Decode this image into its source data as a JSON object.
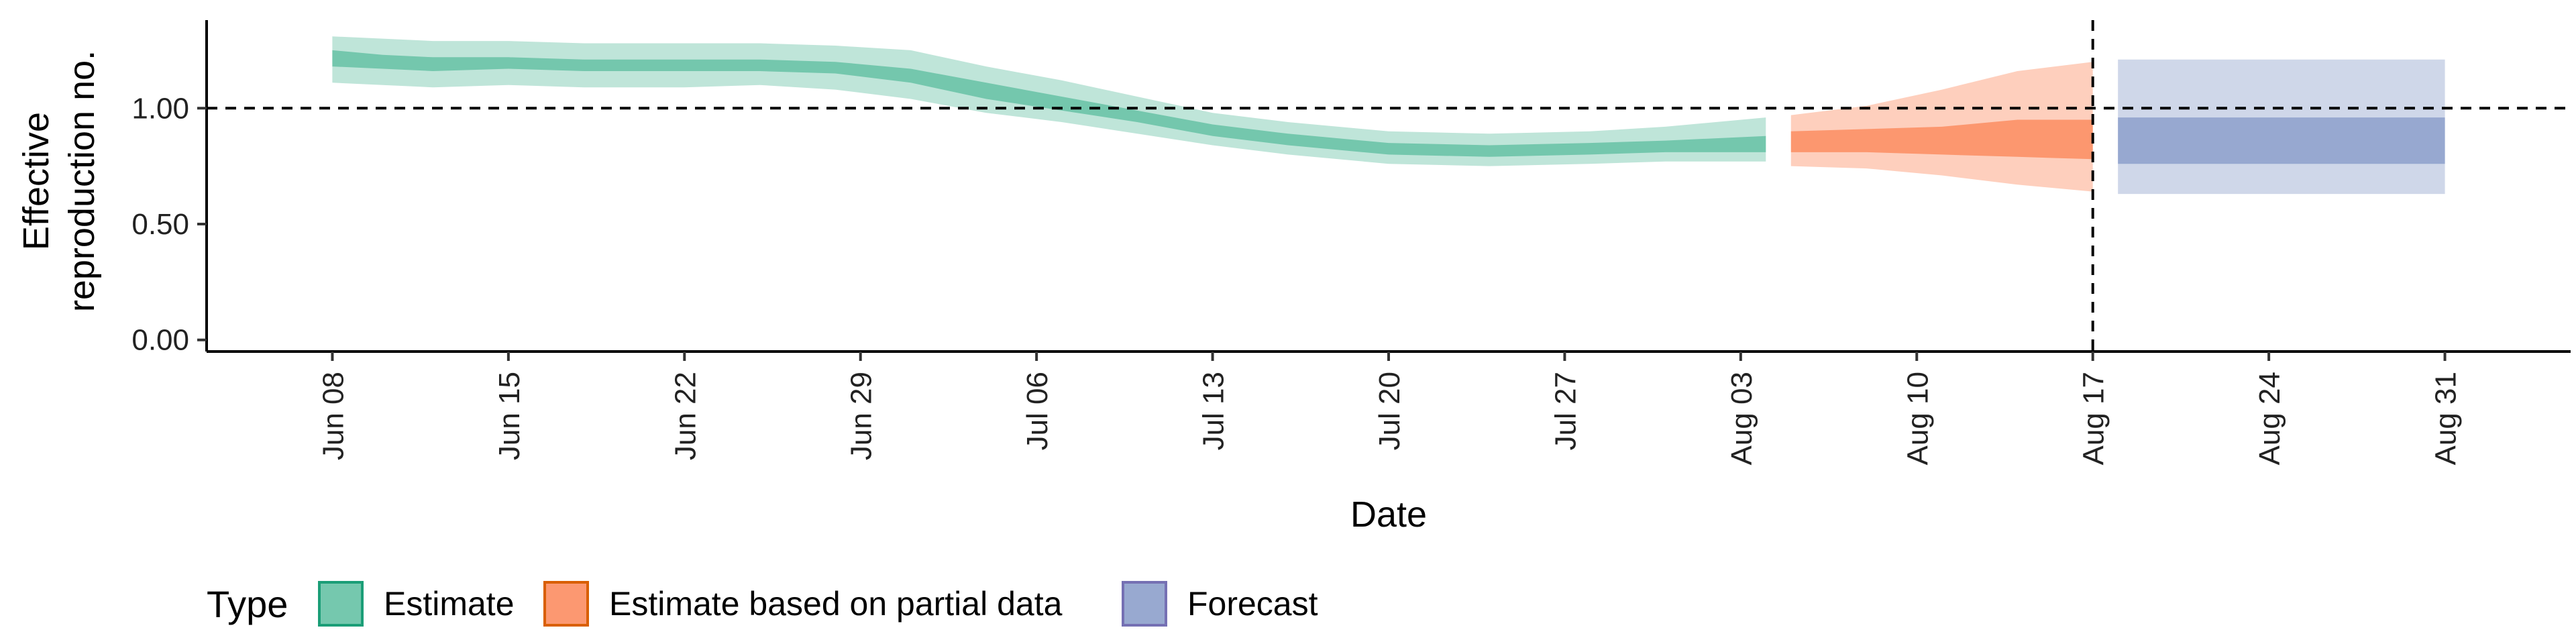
{
  "chart_data": {
    "type": "area",
    "xlabel": "Date",
    "ylabel_lines": [
      "Effective",
      "reproduction no."
    ],
    "x_range": [
      "2020-06-03",
      "2020-09-05"
    ],
    "ylim": [
      -0.05,
      1.38
    ],
    "y_ticks": [
      0.0,
      0.5,
      1.0
    ],
    "y_tick_labels": [
      "0.00",
      "0.50",
      "1.00"
    ],
    "x_ticks": [
      "2020-06-08",
      "2020-06-15",
      "2020-06-22",
      "2020-06-29",
      "2020-07-06",
      "2020-07-13",
      "2020-07-20",
      "2020-07-27",
      "2020-08-03",
      "2020-08-10",
      "2020-08-17",
      "2020-08-24",
      "2020-08-31"
    ],
    "x_tick_labels": [
      "Jun 08",
      "Jun 15",
      "Jun 22",
      "Jun 29",
      "Jul 06",
      "Jul 13",
      "Jul 20",
      "Jul 27",
      "Aug 03",
      "Aug 10",
      "Aug 17",
      "Aug 24",
      "Aug 31"
    ],
    "reference_line_y": 1.0,
    "vertical_line_date": "2020-08-17",
    "grid": false,
    "legend_position": "bottom",
    "legend_title": "Type",
    "series": [
      {
        "name": "Estimate",
        "color": "#66c2a5",
        "points": [
          {
            "date": "2020-06-08",
            "lo90": 1.11,
            "lo50": 1.18,
            "hi50": 1.25,
            "hi90": 1.31
          },
          {
            "date": "2020-06-10",
            "lo90": 1.1,
            "lo50": 1.17,
            "hi50": 1.23,
            "hi90": 1.3
          },
          {
            "date": "2020-06-12",
            "lo90": 1.09,
            "lo50": 1.16,
            "hi50": 1.22,
            "hi90": 1.29
          },
          {
            "date": "2020-06-15",
            "lo90": 1.1,
            "lo50": 1.17,
            "hi50": 1.22,
            "hi90": 1.29
          },
          {
            "date": "2020-06-18",
            "lo90": 1.09,
            "lo50": 1.16,
            "hi50": 1.21,
            "hi90": 1.28
          },
          {
            "date": "2020-06-22",
            "lo90": 1.09,
            "lo50": 1.16,
            "hi50": 1.21,
            "hi90": 1.28
          },
          {
            "date": "2020-06-25",
            "lo90": 1.1,
            "lo50": 1.16,
            "hi50": 1.21,
            "hi90": 1.28
          },
          {
            "date": "2020-06-28",
            "lo90": 1.08,
            "lo50": 1.15,
            "hi50": 1.2,
            "hi90": 1.27
          },
          {
            "date": "2020-07-01",
            "lo90": 1.04,
            "lo50": 1.11,
            "hi50": 1.17,
            "hi90": 1.25
          },
          {
            "date": "2020-07-04",
            "lo90": 0.98,
            "lo50": 1.04,
            "hi50": 1.11,
            "hi90": 1.18
          },
          {
            "date": "2020-07-07",
            "lo90": 0.94,
            "lo50": 0.99,
            "hi50": 1.05,
            "hi90": 1.12
          },
          {
            "date": "2020-07-10",
            "lo90": 0.89,
            "lo50": 0.94,
            "hi50": 0.99,
            "hi90": 1.05
          },
          {
            "date": "2020-07-13",
            "lo90": 0.84,
            "lo50": 0.88,
            "hi50": 0.93,
            "hi90": 0.98
          },
          {
            "date": "2020-07-16",
            "lo90": 0.8,
            "lo50": 0.84,
            "hi50": 0.89,
            "hi90": 0.94
          },
          {
            "date": "2020-07-20",
            "lo90": 0.76,
            "lo50": 0.8,
            "hi50": 0.85,
            "hi90": 0.9
          },
          {
            "date": "2020-07-24",
            "lo90": 0.75,
            "lo50": 0.79,
            "hi50": 0.84,
            "hi90": 0.89
          },
          {
            "date": "2020-07-28",
            "lo90": 0.76,
            "lo50": 0.8,
            "hi50": 0.85,
            "hi90": 0.9
          },
          {
            "date": "2020-07-31",
            "lo90": 0.77,
            "lo50": 0.81,
            "hi50": 0.86,
            "hi90": 0.92
          },
          {
            "date": "2020-08-04",
            "lo90": 0.77,
            "lo50": 0.81,
            "hi50": 0.88,
            "hi90": 0.96
          }
        ]
      },
      {
        "name": "Estimate based on partial data",
        "color": "#fc8d62",
        "points": [
          {
            "date": "2020-08-05",
            "lo90": 0.75,
            "lo50": 0.81,
            "hi50": 0.9,
            "hi90": 0.97
          },
          {
            "date": "2020-08-08",
            "lo90": 0.74,
            "lo50": 0.81,
            "hi50": 0.91,
            "hi90": 1.01
          },
          {
            "date": "2020-08-11",
            "lo90": 0.71,
            "lo50": 0.8,
            "hi50": 0.92,
            "hi90": 1.08
          },
          {
            "date": "2020-08-14",
            "lo90": 0.67,
            "lo50": 0.79,
            "hi50": 0.95,
            "hi90": 1.16
          },
          {
            "date": "2020-08-17",
            "lo90": 0.64,
            "lo50": 0.78,
            "hi50": 0.95,
            "hi90": 1.2
          }
        ]
      },
      {
        "name": "Forecast",
        "color": "#8da0cb",
        "points": [
          {
            "date": "2020-08-18",
            "lo90": 0.63,
            "lo50": 0.76,
            "hi50": 0.96,
            "hi90": 1.21
          },
          {
            "date": "2020-08-31",
            "lo90": 0.63,
            "lo50": 0.76,
            "hi50": 0.96,
            "hi90": 1.21
          }
        ]
      }
    ]
  }
}
